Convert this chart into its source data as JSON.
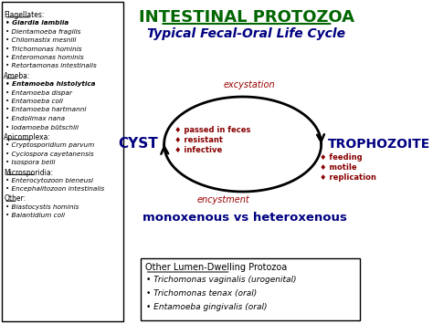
{
  "title": "INTESTINAL PROTOZOA",
  "subtitle": "Typical Fecal-Oral Life Cycle",
  "title_color": "#006600",
  "subtitle_color": "#000080",
  "left_panel": {
    "sections": [
      {
        "header": "Flagellates:",
        "items": [
          {
            "text": "Giardia lamblia",
            "bold": true
          },
          {
            "text": "Dientamoeba fragilis",
            "bold": false
          },
          {
            "text": "Chilomastix mesnili",
            "bold": false
          },
          {
            "text": "Trichomonas hominis",
            "bold": false
          },
          {
            "text": "Enteromonas hominis",
            "bold": false
          },
          {
            "text": "Retortamonas intestinalis",
            "bold": false
          }
        ]
      },
      {
        "header": "Ameba:",
        "items": [
          {
            "text": "Entamoeba histolytica",
            "bold": true
          },
          {
            "text": "Entamoeba dispar",
            "bold": false
          },
          {
            "text": "Entamoeba coli",
            "bold": false
          },
          {
            "text": "Entamoeba hartmanni",
            "bold": false
          },
          {
            "text": "Endolimax nana",
            "bold": false
          },
          {
            "text": "Iodamoeba bütschlii",
            "bold": false
          }
        ]
      },
      {
        "header": "Apicomplexa:",
        "items": [
          {
            "text": "Cryptosporidium parvum",
            "bold": false
          },
          {
            "text": "Cyclospora cayetanensis",
            "bold": false
          },
          {
            "text": "Isospora belli",
            "bold": false
          }
        ]
      },
      {
        "header": "Microsporidia:",
        "items": [
          {
            "text": "Enterocytozoon bieneusi",
            "bold": false
          },
          {
            "text": "Encephalitozoon intestinalis",
            "bold": false
          }
        ]
      },
      {
        "header": "Other:",
        "items": [
          {
            "text": "Blastocystis hominis",
            "bold": false
          },
          {
            "text": "Balantidium coli",
            "bold": false
          }
        ]
      }
    ]
  },
  "cycle": {
    "cyst_label": "CYST",
    "troph_label": "TROPHOZOITE",
    "label_color": "#000080",
    "excystation_label": "excystation",
    "encystment_label": "encystment",
    "cycle_label_color": "#990000",
    "cyst_bullets": [
      "♦ passed in feces",
      "♦ resistant",
      "♦ infective"
    ],
    "troph_bullets": [
      "♦ feeding",
      "♦ motile",
      "♦ replication"
    ],
    "mono_text": "monoxenous vs heteroxenous"
  },
  "bottom_box": {
    "title": "Other Lumen-Dwelling Protozoa",
    "items": [
      "• Trichomonas vaginalis (urogenital)",
      "• Trichomonas tenax (oral)",
      "• Entamoeba gingivalis (oral)"
    ]
  },
  "bg_color": "#ffffff"
}
